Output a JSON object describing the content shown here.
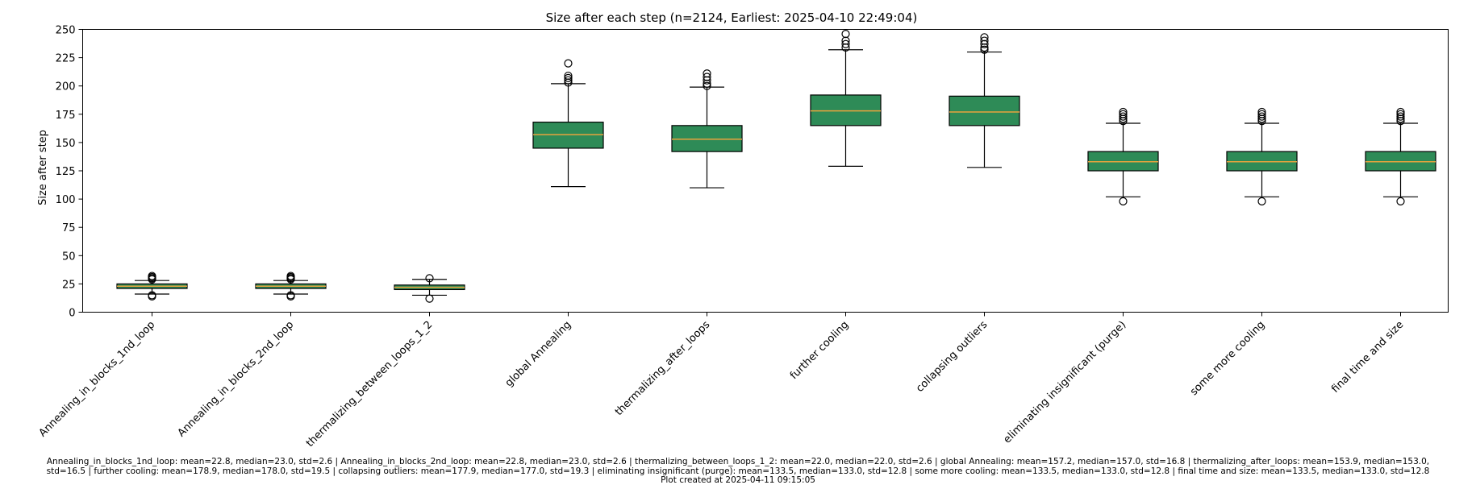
{
  "chart_data": {
    "type": "boxplot",
    "title": "Size after each step (n=2124, Earliest: 2025-04-10 22:49:04)",
    "xlabel": "",
    "ylabel": "Size after step",
    "ylim": [
      0,
      250
    ],
    "yticks": [
      0,
      25,
      50,
      75,
      100,
      125,
      150,
      175,
      200,
      225,
      250
    ],
    "grid": false,
    "box_color": "#2e8b57",
    "median_color": "#e8a33d",
    "categories": [
      "Annealing_in_blocks_1nd_loop",
      "Annealing_in_blocks_2nd_loop",
      "thermalizing_between_loops_1_2",
      "global Annealing",
      "thermalizing_after_loops",
      "further cooling",
      "collapsing outliers",
      "eliminating insignificant (purge)",
      "some more cooling",
      "final time and size"
    ],
    "boxes": [
      {
        "q1": 21,
        "median": 23,
        "q3": 25,
        "whisker_low": 16,
        "whisker_high": 28,
        "outliers": [
          14,
          15,
          29,
          30,
          31,
          32
        ]
      },
      {
        "q1": 21,
        "median": 23,
        "q3": 25,
        "whisker_low": 16,
        "whisker_high": 28,
        "outliers": [
          14,
          15,
          29,
          30,
          31,
          32
        ]
      },
      {
        "q1": 20,
        "median": 22,
        "q3": 24,
        "whisker_low": 15,
        "whisker_high": 29,
        "outliers": [
          12,
          30
        ]
      },
      {
        "q1": 145,
        "median": 157,
        "q3": 168,
        "whisker_low": 111,
        "whisker_high": 202,
        "outliers": [
          203,
          205,
          207,
          209,
          220
        ]
      },
      {
        "q1": 142,
        "median": 153,
        "q3": 165,
        "whisker_low": 110,
        "whisker_high": 199,
        "outliers": [
          200,
          202,
          205,
          208,
          211
        ]
      },
      {
        "q1": 165,
        "median": 178,
        "q3": 192,
        "whisker_low": 129,
        "whisker_high": 232,
        "outliers": [
          234,
          237,
          240,
          246
        ]
      },
      {
        "q1": 165,
        "median": 177,
        "q3": 191,
        "whisker_low": 128,
        "whisker_high": 230,
        "outliers": [
          232,
          234,
          237,
          240,
          243
        ]
      },
      {
        "q1": 125,
        "median": 133,
        "q3": 142,
        "whisker_low": 102,
        "whisker_high": 167,
        "outliers": [
          98,
          169,
          171,
          173,
          175,
          177
        ]
      },
      {
        "q1": 125,
        "median": 133,
        "q3": 142,
        "whisker_low": 102,
        "whisker_high": 167,
        "outliers": [
          98,
          169,
          171,
          173,
          175,
          177
        ]
      },
      {
        "q1": 125,
        "median": 133,
        "q3": 142,
        "whisker_low": 102,
        "whisker_high": 167,
        "outliers": [
          98,
          169,
          171,
          173,
          175,
          177
        ]
      }
    ]
  },
  "footer": {
    "stats_line1": "Annealing_in_blocks_1nd_loop: mean=22.8, median=23.0, std=2.6 | Annealing_in_blocks_2nd_loop: mean=22.8, median=23.0, std=2.6 | thermalizing_between_loops_1_2: mean=22.0, median=22.0, std=2.6 | global Annealing: mean=157.2, median=157.0, std=16.8 | thermalizing_after_loops: mean=153.9, median=153.0,",
    "stats_line2": "std=16.5 | further cooling: mean=178.9, median=178.0, std=19.5 | collapsing outliers: mean=177.9, median=177.0, std=19.3 | eliminating insignificant (purge): mean=133.5, median=133.0, std=12.8 | some more cooling: mean=133.5, median=133.0, std=12.8 | final time and size: mean=133.5, median=133.0, std=12.8",
    "created": "Plot created at 2025-04-11 09:15:05"
  }
}
